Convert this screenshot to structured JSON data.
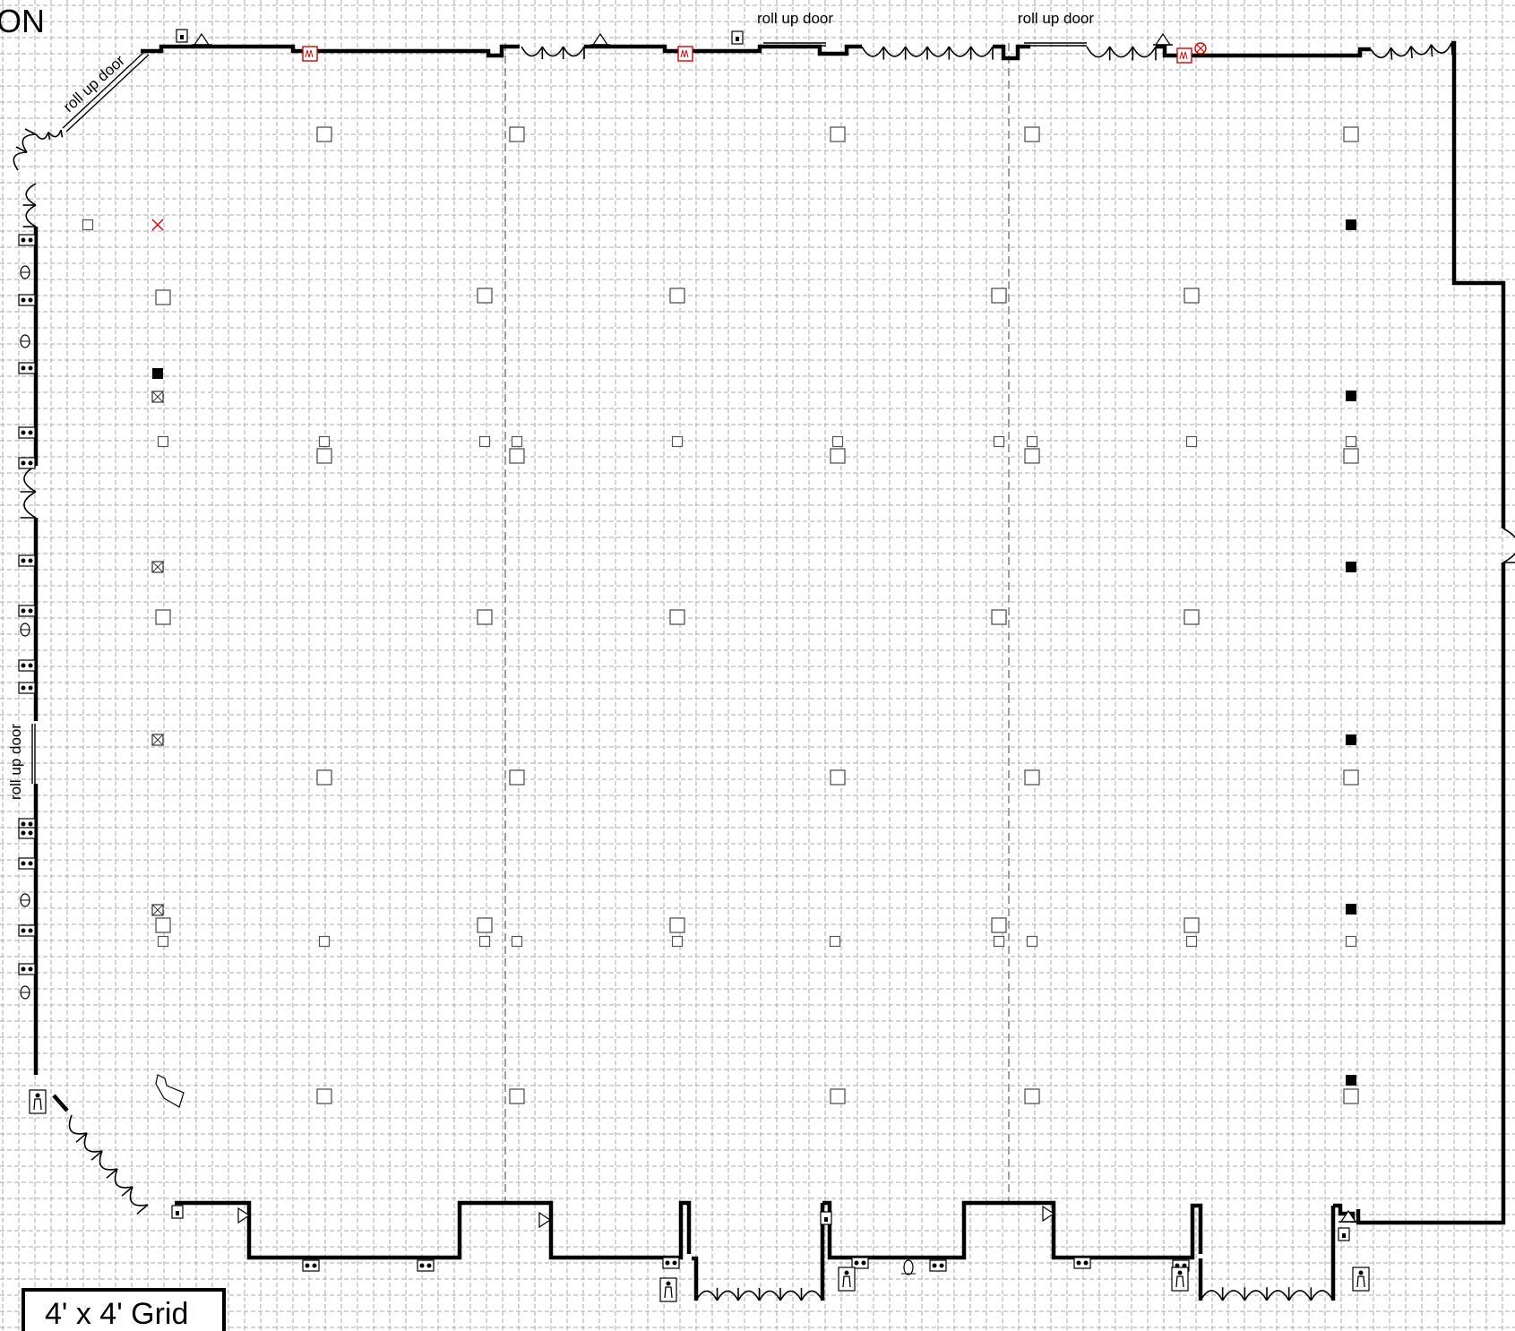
{
  "title_fragment": "ON",
  "door_labels": {
    "diagonal": "roll up door",
    "top_left": "roll up door",
    "top_right": "roll up door",
    "west": "roll up door"
  },
  "legend": {
    "grid_label": "4' x 4' Grid"
  },
  "colors": {
    "wall": "#000000",
    "grid": "#a9a9a9",
    "alarm": "#d00000"
  },
  "icons": [
    "outlet-icon",
    "receptacle-icon",
    "exit-sign-icon",
    "emergency-light-icon",
    "alarm-icon",
    "restroom-icon",
    "column-icon",
    "junction-box-icon"
  ]
}
